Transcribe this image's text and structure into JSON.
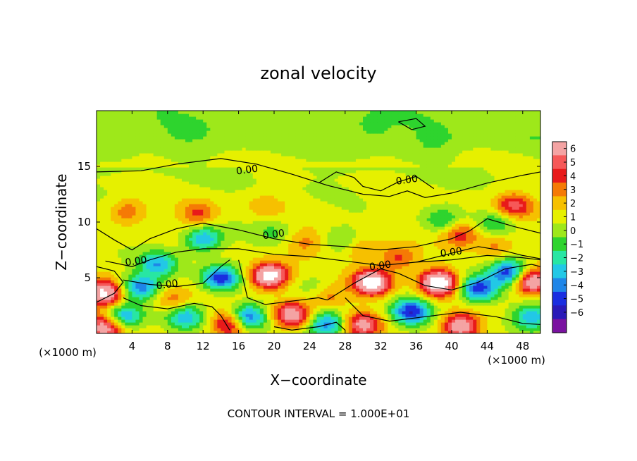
{
  "chart_data": {
    "type": "heatmap",
    "title": "zonal velocity",
    "xlabel": "X−coordinate",
    "ylabel": "Z−coordinate",
    "x_unit_left": "(×1000 m)",
    "x_unit_right": "(×1000 m)",
    "xlim": [
      0,
      50
    ],
    "ylim": [
      0,
      20
    ],
    "x_ticks": [
      4,
      8,
      12,
      16,
      20,
      24,
      28,
      32,
      36,
      40,
      44,
      48
    ],
    "y_ticks": [
      5,
      10,
      15
    ],
    "colorbar": {
      "ticks": [
        6,
        5,
        4,
        3,
        2,
        1,
        0,
        -1,
        -2,
        -3,
        -4,
        -5,
        -6
      ],
      "tick_labels": [
        "6",
        "5",
        "4",
        "3",
        "2",
        "1",
        "0",
        "−1",
        "−2",
        "−3",
        "−4",
        "−5",
        "−6"
      ],
      "colors": [
        "#f4a3a3",
        "#f65858",
        "#e81a1a",
        "#f57a05",
        "#f6c000",
        "#e6f000",
        "#9ee81a",
        "#2ed42e",
        "#28e6a3",
        "#22c8e6",
        "#1f86e8",
        "#1a2ee0",
        "#2a1ab8",
        "#7a12a0"
      ]
    },
    "contour_label": "0.00",
    "contour_interval_text": "CONTOUR INTERVAL = 1.000E+01",
    "blobs": [
      {
        "x": 19.5,
        "z": 5.2,
        "v": 8
      },
      {
        "x": 31.0,
        "z": 4.6,
        "v": 8
      },
      {
        "x": 38.5,
        "z": 4.6,
        "v": 8
      },
      {
        "x": 49.0,
        "z": 4.7,
        "v": 7
      },
      {
        "x": 0.8,
        "z": 3.6,
        "v": 7
      },
      {
        "x": 22.0,
        "z": 1.7,
        "v": 6
      },
      {
        "x": 15.0,
        "z": 0.9,
        "v": 5
      },
      {
        "x": 30.0,
        "z": 0.8,
        "v": 5
      },
      {
        "x": 41.0,
        "z": 0.7,
        "v": 6
      },
      {
        "x": 1.0,
        "z": 0.6,
        "v": 6
      },
      {
        "x": 47.0,
        "z": 11.5,
        "v": 4
      },
      {
        "x": 41.0,
        "z": 9.0,
        "v": 3.5
      },
      {
        "x": 11.5,
        "z": 10.8,
        "v": 3
      },
      {
        "x": 3.5,
        "z": 11.0,
        "v": 2.5
      },
      {
        "x": 8.5,
        "z": 3.0,
        "v": 2.5
      },
      {
        "x": 26.0,
        "z": 3.5,
        "v": 2.5
      },
      {
        "x": 34.0,
        "z": 6.8,
        "v": 3
      },
      {
        "x": 23.5,
        "z": 8.2,
        "v": 2
      },
      {
        "x": 30.0,
        "z": 7.5,
        "v": 2
      },
      {
        "x": 45.0,
        "z": 8.0,
        "v": 2
      },
      {
        "x": 19.0,
        "z": 11.5,
        "v": 1.2
      },
      {
        "x": 14.0,
        "z": 5.0,
        "v": -6
      },
      {
        "x": 5.0,
        "z": 4.2,
        "v": -5
      },
      {
        "x": 12.0,
        "z": 8.5,
        "v": -4.5
      },
      {
        "x": 7.0,
        "z": 6.3,
        "v": -4
      },
      {
        "x": 17.0,
        "z": 1.5,
        "v": -6
      },
      {
        "x": 26.0,
        "z": 0.9,
        "v": -5
      },
      {
        "x": 35.5,
        "z": 2.0,
        "v": -6
      },
      {
        "x": 43.0,
        "z": 4.0,
        "v": -6
      },
      {
        "x": 46.5,
        "z": 5.5,
        "v": -6
      },
      {
        "x": 3.0,
        "z": 1.5,
        "v": -5
      },
      {
        "x": 10.0,
        "z": 1.5,
        "v": -4
      },
      {
        "x": 49.0,
        "z": 1.5,
        "v": -4
      },
      {
        "x": 39.0,
        "z": 10.2,
        "v": -2.5
      },
      {
        "x": 45.0,
        "z": 10.0,
        "v": -2.5
      },
      {
        "x": 27.5,
        "z": 8.5,
        "v": -1.5
      },
      {
        "x": 25.0,
        "z": 4.2,
        "v": -1.5
      },
      {
        "x": 20.0,
        "z": 9.2,
        "v": -1.5
      },
      {
        "x": 31.0,
        "z": 18.5,
        "v": -1.0
      },
      {
        "x": 38.0,
        "z": 17.0,
        "v": -0.8
      },
      {
        "x": 10.0,
        "z": 18.0,
        "v": -0.5
      }
    ],
    "contours": [
      {
        "label": "0.00",
        "label_at": [
          17,
          14.4
        ],
        "points": [
          [
            0,
            14.5
          ],
          [
            5,
            14.6
          ],
          [
            9,
            15.2
          ],
          [
            14,
            15.7
          ],
          [
            18,
            15.2
          ],
          [
            22,
            14.3
          ],
          [
            26,
            13.3
          ],
          [
            30,
            12.5
          ],
          [
            33,
            12.3
          ],
          [
            35,
            12.8
          ],
          [
            37,
            12.2
          ],
          [
            40,
            12.6
          ],
          [
            44,
            13.5
          ],
          [
            48,
            14.2
          ],
          [
            50,
            14.5
          ]
        ]
      },
      {
        "label": "0.00",
        "label_at": [
          35,
          13.5
        ],
        "points": [
          [
            25,
            13.5
          ],
          [
            27,
            14.5
          ],
          [
            29,
            14.0
          ],
          [
            30,
            13.2
          ],
          [
            32,
            12.8
          ],
          [
            34,
            13.6
          ],
          [
            36,
            14.1
          ],
          [
            38,
            13.0
          ]
        ]
      },
      {
        "label": "",
        "label_at": null,
        "points": [
          [
            34,
            19.0
          ],
          [
            35.5,
            18.3
          ],
          [
            37,
            18.6
          ],
          [
            36,
            19.3
          ],
          [
            34,
            19.0
          ]
        ]
      },
      {
        "label": "0.00",
        "label_at": [
          20,
          8.6
        ],
        "points": [
          [
            0,
            9.4
          ],
          [
            2,
            8.4
          ],
          [
            4,
            7.5
          ],
          [
            6,
            8.5
          ],
          [
            9,
            9.4
          ],
          [
            12,
            9.9
          ],
          [
            16,
            9.3
          ],
          [
            20,
            8.5
          ],
          [
            24,
            8.0
          ],
          [
            28,
            7.8
          ],
          [
            32,
            7.5
          ],
          [
            36,
            7.8
          ],
          [
            40,
            8.5
          ],
          [
            42,
            9.2
          ],
          [
            44,
            10.3
          ],
          [
            47,
            9.6
          ],
          [
            50,
            9.0
          ]
        ]
      },
      {
        "label": "0.00",
        "label_at": [
          4.5,
          6.2
        ],
        "points": [
          [
            1,
            6.5
          ],
          [
            4,
            6.0
          ],
          [
            6,
            6.6
          ],
          [
            9,
            7.3
          ],
          [
            12,
            7.6
          ],
          [
            16,
            7.6
          ],
          [
            20,
            7.1
          ],
          [
            24,
            6.9
          ],
          [
            28,
            6.5
          ],
          [
            32,
            6.1
          ],
          [
            36,
            6.4
          ],
          [
            40,
            6.6
          ],
          [
            44,
            7.0
          ],
          [
            48,
            6.8
          ],
          [
            50,
            6.6
          ]
        ]
      },
      {
        "label": "0.00",
        "label_at": [
          8,
          4.1
        ],
        "points": [
          [
            3,
            4.8
          ],
          [
            6,
            4.4
          ],
          [
            9,
            4.2
          ],
          [
            12,
            4.5
          ],
          [
            14,
            6.0
          ],
          [
            15,
            6.6
          ]
        ]
      },
      {
        "label": "0.00",
        "label_at": [
          32,
          5.8
        ],
        "points": [
          [
            26,
            3.0
          ],
          [
            29,
            4.5
          ],
          [
            32,
            5.8
          ],
          [
            34,
            5.4
          ],
          [
            37,
            4.3
          ],
          [
            40,
            3.9
          ],
          [
            43,
            4.6
          ],
          [
            46,
            5.8
          ],
          [
            49,
            6.2
          ],
          [
            50,
            6.0
          ]
        ]
      },
      {
        "label": "0.00",
        "label_at": [
          40,
          7.0
        ],
        "points": [
          [
            36,
            6.4
          ],
          [
            40,
            7.2
          ],
          [
            43,
            7.8
          ],
          [
            46,
            7.4
          ],
          [
            48,
            7.0
          ],
          [
            50,
            6.7
          ]
        ]
      },
      {
        "label": "",
        "label_at": null,
        "points": [
          [
            16,
            6.6
          ],
          [
            17,
            3.2
          ],
          [
            19,
            2.6
          ],
          [
            22,
            2.9
          ],
          [
            25,
            3.2
          ],
          [
            26,
            3.0
          ]
        ]
      },
      {
        "label": "",
        "label_at": null,
        "points": [
          [
            28,
            3.2
          ],
          [
            30,
            1.6
          ],
          [
            33,
            1.1
          ],
          [
            37,
            1.5
          ],
          [
            41,
            1.9
          ],
          [
            45,
            1.5
          ],
          [
            48,
            0.9
          ],
          [
            50,
            0.8
          ]
        ]
      },
      {
        "label": "",
        "label_at": null,
        "points": [
          [
            3,
            3.2
          ],
          [
            5,
            2.5
          ],
          [
            8,
            2.2
          ],
          [
            11,
            2.7
          ],
          [
            13,
            2.4
          ],
          [
            14,
            1.6
          ],
          [
            15,
            0.3
          ]
        ]
      },
      {
        "label": "",
        "label_at": null,
        "points": [
          [
            0,
            2.8
          ],
          [
            2,
            3.6
          ],
          [
            3,
            4.6
          ],
          [
            2,
            5.6
          ],
          [
            0,
            6.0
          ]
        ]
      },
      {
        "label": "",
        "label_at": null,
        "points": [
          [
            20,
            0.6
          ],
          [
            22,
            0.3
          ],
          [
            25,
            0.6
          ],
          [
            27,
            1.0
          ],
          [
            28,
            0.3
          ]
        ]
      }
    ]
  }
}
